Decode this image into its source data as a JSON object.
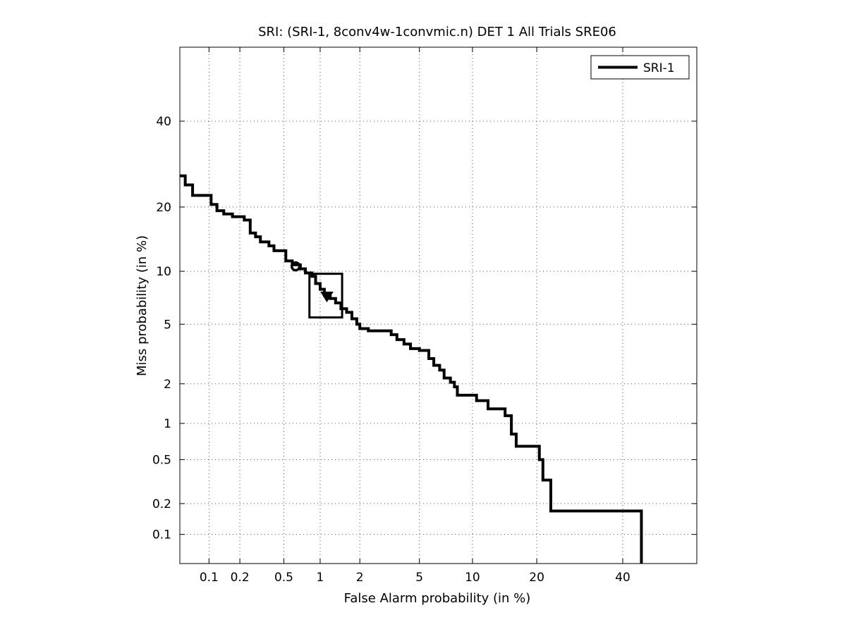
{
  "chart_data": {
    "type": "line",
    "title": "SRI: (SRI-1, 8conv4w-1convmic.n) DET 1 All Trials SRE06",
    "xlabel": "False Alarm probability (in %)",
    "ylabel": "Miss probability (in %)",
    "x_scale": "normal-deviate (probit)",
    "y_scale": "normal-deviate (probit)",
    "xlim": [
      0.05,
      60
    ],
    "ylim": [
      0.05,
      60
    ],
    "xticks": [
      0.1,
      0.2,
      0.5,
      1,
      2,
      5,
      10,
      20,
      40
    ],
    "yticks": [
      0.1,
      0.2,
      0.5,
      1,
      2,
      5,
      10,
      20,
      40
    ],
    "xtick_labels": [
      "0.1",
      "0.2",
      "0.5",
      "1",
      "2",
      "5",
      "10",
      "20",
      "40"
    ],
    "ytick_labels": [
      "0.1",
      "0.2",
      "0.5",
      "1",
      "2",
      "5",
      "10",
      "20",
      "40"
    ],
    "grid": true,
    "legend": {
      "position": "top-right",
      "entries": [
        "SRI-1"
      ]
    },
    "series": [
      {
        "name": "SRI-1",
        "color": "#000000",
        "points": [
          [
            0.05,
            26.5
          ],
          [
            0.057,
            26.5
          ],
          [
            0.057,
            24.5
          ],
          [
            0.068,
            24.5
          ],
          [
            0.068,
            22.3
          ],
          [
            0.105,
            22.3
          ],
          [
            0.105,
            20.5
          ],
          [
            0.12,
            20.5
          ],
          [
            0.12,
            19.3
          ],
          [
            0.14,
            19.3
          ],
          [
            0.14,
            18.7
          ],
          [
            0.17,
            18.7
          ],
          [
            0.17,
            18.2
          ],
          [
            0.22,
            18.2
          ],
          [
            0.22,
            17.6
          ],
          [
            0.25,
            17.6
          ],
          [
            0.25,
            15.4
          ],
          [
            0.28,
            15.4
          ],
          [
            0.28,
            14.8
          ],
          [
            0.31,
            14.8
          ],
          [
            0.31,
            14.0
          ],
          [
            0.37,
            14.0
          ],
          [
            0.37,
            13.4
          ],
          [
            0.41,
            13.4
          ],
          [
            0.41,
            12.7
          ],
          [
            0.52,
            12.7
          ],
          [
            0.52,
            11.3
          ],
          [
            0.59,
            11.3
          ],
          [
            0.59,
            10.8
          ],
          [
            0.69,
            10.8
          ],
          [
            0.69,
            10.3
          ],
          [
            0.76,
            10.3
          ],
          [
            0.76,
            9.8
          ],
          [
            0.86,
            9.8
          ],
          [
            0.86,
            9.4
          ],
          [
            0.92,
            9.4
          ],
          [
            0.92,
            8.6
          ],
          [
            1.0,
            8.6
          ],
          [
            1.0,
            8.0
          ],
          [
            1.08,
            8.0
          ],
          [
            1.08,
            7.4
          ],
          [
            1.2,
            7.4
          ],
          [
            1.2,
            7.1
          ],
          [
            1.32,
            7.1
          ],
          [
            1.32,
            6.7
          ],
          [
            1.45,
            6.7
          ],
          [
            1.45,
            6.2
          ],
          [
            1.6,
            6.2
          ],
          [
            1.6,
            5.9
          ],
          [
            1.75,
            5.9
          ],
          [
            1.75,
            5.4
          ],
          [
            1.9,
            5.4
          ],
          [
            1.9,
            5.0
          ],
          [
            2.0,
            5.0
          ],
          [
            2.0,
            4.7
          ],
          [
            2.3,
            4.7
          ],
          [
            2.3,
            4.55
          ],
          [
            3.3,
            4.55
          ],
          [
            3.3,
            4.3
          ],
          [
            3.6,
            4.3
          ],
          [
            3.6,
            4.0
          ],
          [
            4.0,
            4.0
          ],
          [
            4.0,
            3.75
          ],
          [
            4.4,
            3.75
          ],
          [
            4.4,
            3.5
          ],
          [
            5.0,
            3.5
          ],
          [
            5.0,
            3.4
          ],
          [
            5.7,
            3.4
          ],
          [
            5.7,
            3.0
          ],
          [
            6.1,
            3.0
          ],
          [
            6.1,
            2.7
          ],
          [
            6.6,
            2.7
          ],
          [
            6.6,
            2.5
          ],
          [
            7.0,
            2.5
          ],
          [
            7.0,
            2.2
          ],
          [
            7.6,
            2.2
          ],
          [
            7.6,
            2.05
          ],
          [
            8.0,
            2.05
          ],
          [
            8.0,
            1.9
          ],
          [
            8.3,
            1.9
          ],
          [
            8.3,
            1.65
          ],
          [
            10.5,
            1.65
          ],
          [
            10.5,
            1.5
          ],
          [
            12.0,
            1.5
          ],
          [
            12.0,
            1.3
          ],
          [
            14.5,
            1.3
          ],
          [
            14.5,
            1.15
          ],
          [
            15.5,
            1.15
          ],
          [
            15.5,
            0.82
          ],
          [
            16.3,
            0.82
          ],
          [
            16.3,
            0.65
          ],
          [
            20.5,
            0.65
          ],
          [
            20.5,
            0.5
          ],
          [
            21.2,
            0.5
          ],
          [
            21.2,
            0.33
          ],
          [
            22.8,
            0.33
          ],
          [
            22.8,
            0.17
          ],
          [
            45.0,
            0.17
          ],
          [
            45.0,
            0.05
          ]
        ]
      }
    ],
    "annotations": [
      {
        "kind": "circle-marker",
        "x": 0.63,
        "y": 10.6
      },
      {
        "kind": "triangle-marker",
        "x": 1.13,
        "y": 7.3
      },
      {
        "kind": "confidence-box",
        "x_range": [
          0.82,
          1.48
        ],
        "y_range": [
          5.5,
          9.7
        ]
      }
    ]
  }
}
